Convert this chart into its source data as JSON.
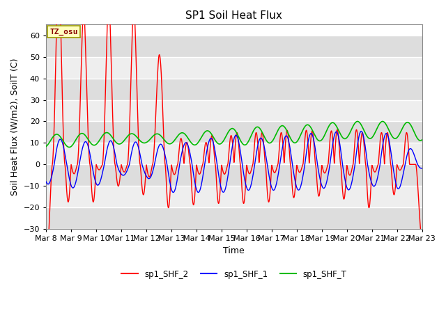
{
  "title": "SP1 Soil Heat Flux",
  "xlabel": "Time",
  "ylabel": "Soil Heat Flux (W/m2), SoilT (C)",
  "ylim": [
    -30,
    65
  ],
  "xlim": [
    0,
    15
  ],
  "xtick_labels": [
    "Mar 8",
    "Mar 9",
    "Mar 10",
    "Mar 11",
    "Mar 12",
    "Mar 13",
    "Mar 14",
    "Mar 15",
    "Mar 16",
    "Mar 17",
    "Mar 18",
    "Mar 19",
    "Mar 20",
    "Mar 21",
    "Mar 22",
    "Mar 23"
  ],
  "ytick_values": [
    -30,
    -20,
    -10,
    0,
    10,
    20,
    30,
    40,
    50,
    60
  ],
  "legend_labels": [
    "sp1_SHF_2",
    "sp1_SHF_1",
    "sp1_SHF_T"
  ],
  "legend_colors": [
    "#ff0000",
    "#0000ff",
    "#00bb00"
  ],
  "tz_label": "TZ_osu",
  "fig_bg_color": "#ffffff",
  "plot_bg_color": "#ffffff",
  "band_color_dark": "#dddddd",
  "band_color_light": "#eeeeee",
  "title_fontsize": 11,
  "label_fontsize": 9,
  "tick_fontsize": 8
}
